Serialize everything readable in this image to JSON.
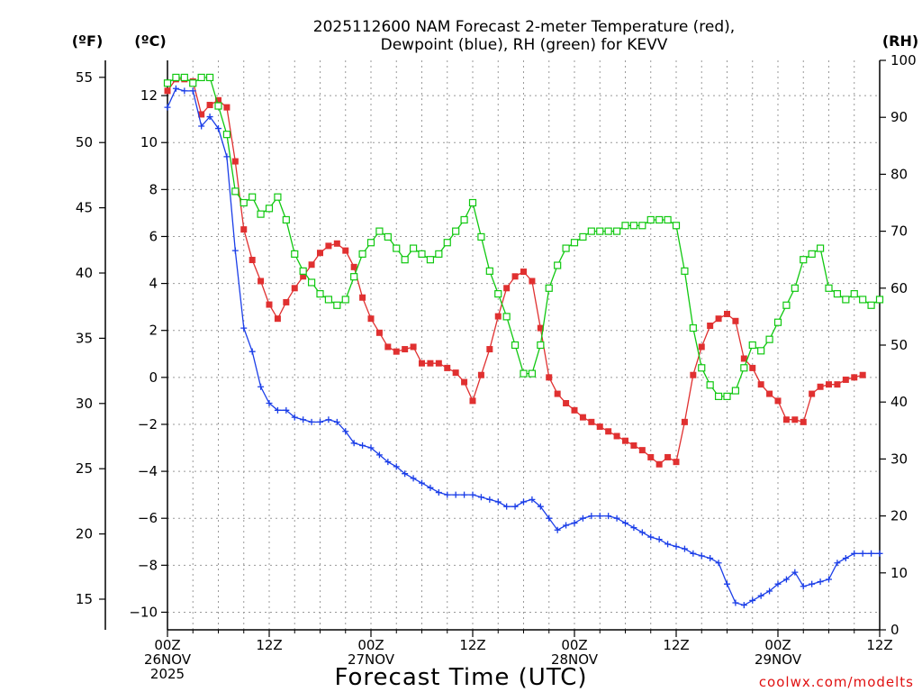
{
  "chart_data": {
    "type": "line",
    "title": "2025112600 NAM Forecast 2-meter Temperature (red),",
    "subtitle": "Dewpoint (blue), RH (green) for KEVV",
    "xlabel": "Forecast Time (UTC)",
    "credit": "coolwx.com/modelts",
    "units": {
      "fahrenheit": "(ºF)",
      "celsius": "(ºC)",
      "rh": "(RH)"
    },
    "xlim": [
      0,
      84
    ],
    "x_ticks": [
      {
        "h": 0,
        "lines": [
          "00Z",
          "26NOV",
          "2025"
        ]
      },
      {
        "h": 12,
        "lines": [
          "12Z"
        ]
      },
      {
        "h": 24,
        "lines": [
          "00Z",
          "27NOV"
        ]
      },
      {
        "h": 36,
        "lines": [
          "12Z"
        ]
      },
      {
        "h": 48,
        "lines": [
          "00Z",
          "28NOV"
        ]
      },
      {
        "h": 60,
        "lines": [
          "12Z"
        ]
      },
      {
        "h": 72,
        "lines": [
          "00Z",
          "29NOV"
        ]
      },
      {
        "h": 84,
        "lines": [
          "12Z"
        ]
      }
    ],
    "ylim_c": [
      -10.75,
      13.5
    ],
    "yticks_c": [
      -10,
      -8,
      -6,
      -4,
      -2,
      0,
      2,
      4,
      6,
      8,
      10,
      12
    ],
    "yticks_f": [
      15,
      20,
      25,
      30,
      35,
      40,
      45,
      50,
      55
    ],
    "ylim_rh": [
      0,
      100
    ],
    "yticks_rh": [
      0,
      10,
      20,
      30,
      40,
      50,
      60,
      70,
      80,
      90,
      100
    ],
    "hours": [
      0,
      1,
      2,
      3,
      4,
      5,
      6,
      7,
      8,
      9,
      10,
      11,
      12,
      13,
      14,
      15,
      16,
      17,
      18,
      19,
      20,
      21,
      22,
      23,
      24,
      25,
      26,
      27,
      28,
      29,
      30,
      31,
      32,
      33,
      34,
      35,
      36,
      37,
      38,
      39,
      40,
      41,
      42,
      43,
      44,
      45,
      46,
      47,
      48,
      49,
      50,
      51,
      52,
      53,
      54,
      55,
      56,
      57,
      58,
      59,
      60,
      61,
      62,
      63,
      64,
      65,
      66,
      67,
      68,
      69,
      70,
      71,
      72,
      73,
      74,
      75,
      76,
      77,
      78,
      79,
      80,
      81,
      82,
      83,
      84
    ],
    "series": [
      {
        "name": "Temperature",
        "axis": "celsius",
        "color": "#e03030",
        "marker": "filled-square",
        "values": [
          12.2,
          12.7,
          12.7,
          12.6,
          11.2,
          11.6,
          11.8,
          11.5,
          9.2,
          6.3,
          5.0,
          4.1,
          3.1,
          2.5,
          3.2,
          3.8,
          4.3,
          4.8,
          5.3,
          5.6,
          5.7,
          5.4,
          4.7,
          3.4,
          2.5,
          1.9,
          1.3,
          1.1,
          1.2,
          1.3,
          0.6,
          0.6,
          0.6,
          0.4,
          0.2,
          -0.2,
          -1.0,
          0.1,
          1.2,
          2.6,
          3.8,
          4.3,
          4.5,
          4.1,
          2.1,
          0.0,
          -0.7,
          -1.1,
          -1.4,
          -1.7,
          -1.9,
          -2.1,
          -2.3,
          -2.5,
          -2.7,
          -2.9,
          -3.1,
          -3.4,
          -3.7,
          -3.4,
          -3.6,
          -1.9,
          0.1,
          1.3,
          2.2,
          2.5,
          2.7,
          2.4,
          0.8,
          0.4,
          -0.3,
          -0.7,
          -1.0,
          -1.8,
          -1.8,
          -1.9,
          -0.7,
          -0.4,
          -0.3,
          -0.3,
          -0.1,
          0.0,
          0.1
        ]
      },
      {
        "name": "Dewpoint",
        "axis": "celsius",
        "color": "#1b3ee8",
        "marker": "plus",
        "values": [
          11.5,
          12.3,
          12.2,
          12.2,
          10.7,
          11.1,
          10.6,
          9.4,
          5.4,
          2.1,
          1.1,
          -0.4,
          -1.1,
          -1.4,
          -1.4,
          -1.7,
          -1.8,
          -1.9,
          -1.9,
          -1.8,
          -1.9,
          -2.3,
          -2.8,
          -2.9,
          -3.0,
          -3.3,
          -3.6,
          -3.8,
          -4.1,
          -4.3,
          -4.5,
          -4.7,
          -4.9,
          -5.0,
          -5.0,
          -5.0,
          -5.0,
          -5.1,
          -5.2,
          -5.3,
          -5.5,
          -5.5,
          -5.3,
          -5.2,
          -5.5,
          -6.0,
          -6.5,
          -6.3,
          -6.2,
          -6.0,
          -5.9,
          -5.9,
          -5.9,
          -6.0,
          -6.2,
          -6.4,
          -6.6,
          -6.8,
          -6.9,
          -7.1,
          -7.2,
          -7.3,
          -7.5,
          -7.6,
          -7.7,
          -7.9,
          -8.8,
          -9.6,
          -9.7,
          -9.5,
          -9.3,
          -9.1,
          -8.8,
          -8.6,
          -8.3,
          -8.9,
          -8.8,
          -8.7,
          -8.6,
          -7.9,
          -7.7,
          -7.5,
          -7.5,
          -7.5,
          -7.5
        ]
      },
      {
        "name": "Relative Humidity",
        "axis": "rh",
        "color": "#10c810",
        "marker": "open-square",
        "values": [
          96,
          97,
          97,
          96,
          97,
          97,
          92,
          87,
          77,
          75,
          76,
          73,
          74,
          76,
          72,
          66,
          63,
          61,
          59,
          58,
          57,
          58,
          62,
          66,
          68,
          70,
          69,
          67,
          65,
          67,
          66,
          65,
          66,
          68,
          70,
          72,
          75,
          69,
          63,
          59,
          55,
          50,
          45,
          45,
          50,
          60,
          64,
          67,
          68,
          69,
          70,
          70,
          70,
          70,
          71,
          71,
          71,
          72,
          72,
          72,
          71,
          63,
          53,
          46,
          43,
          41,
          41,
          42,
          46,
          50,
          49,
          51,
          54,
          57,
          60,
          65,
          66,
          67,
          60,
          59,
          58,
          59,
          58,
          57,
          58
        ]
      }
    ]
  }
}
